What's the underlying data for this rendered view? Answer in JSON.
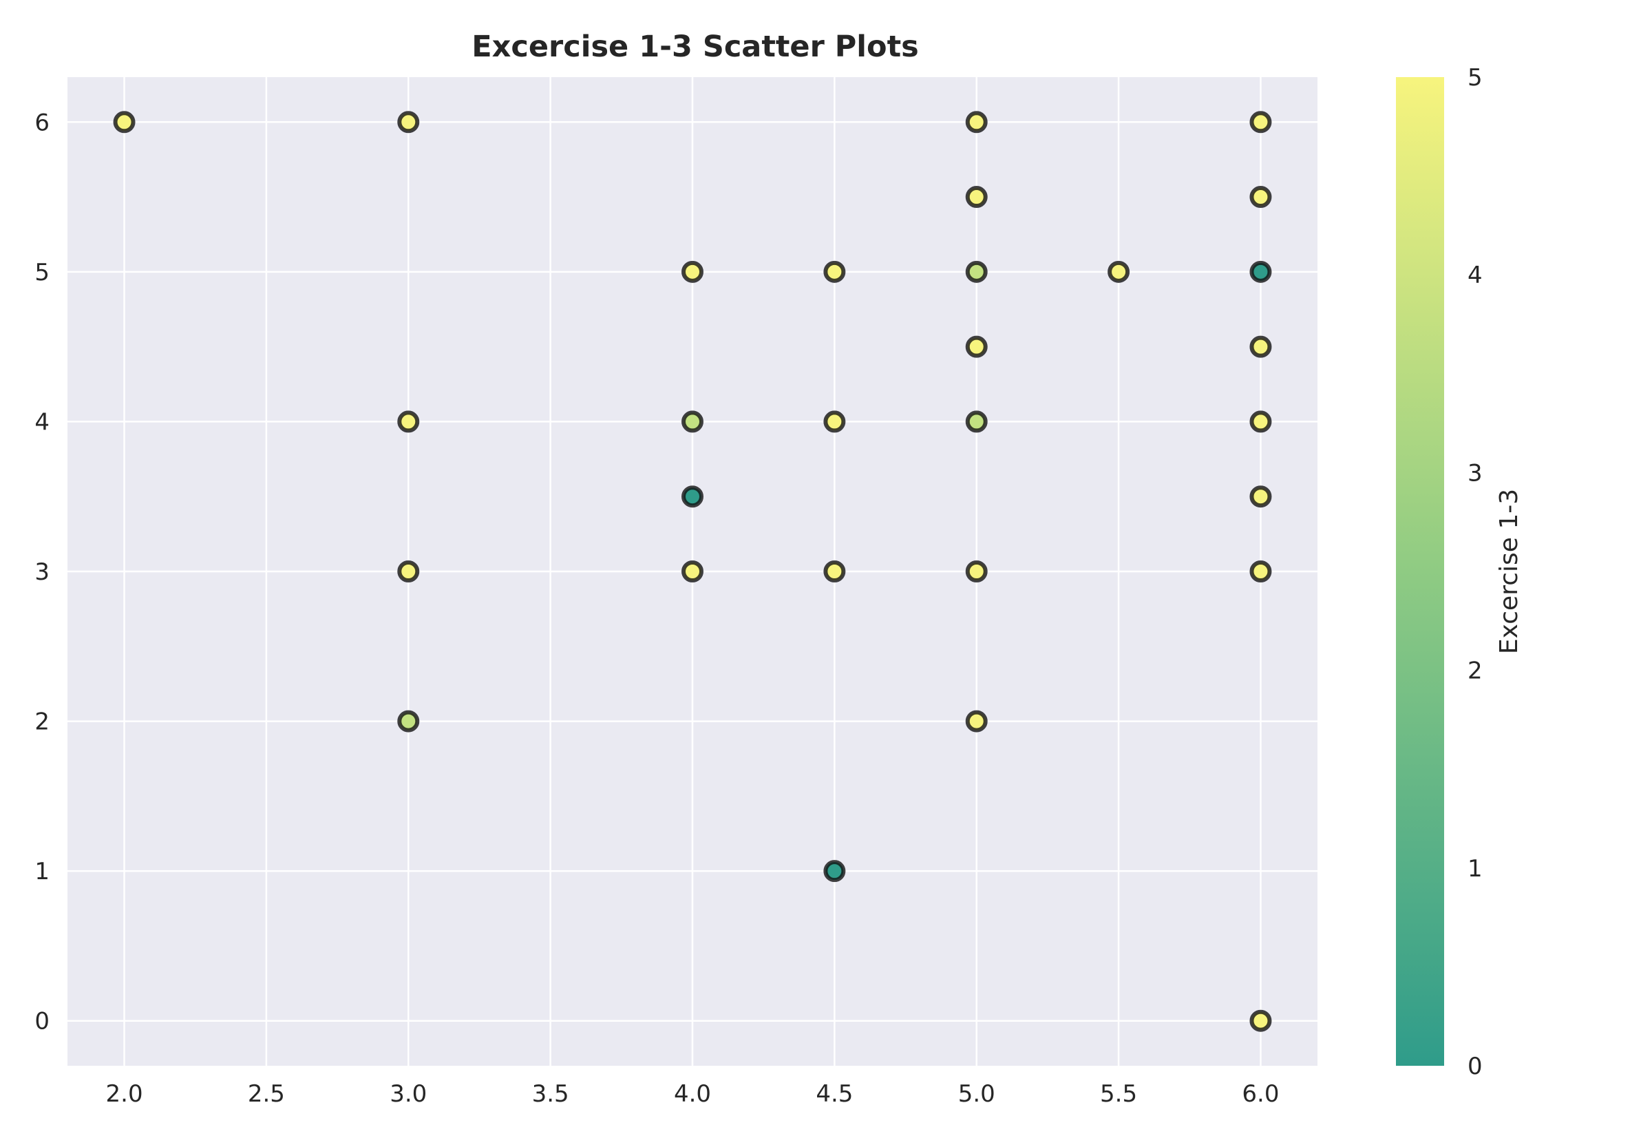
{
  "chart_data": {
    "type": "scatter",
    "title": "Excercise 1-3 Scatter Plots",
    "xlabel": "",
    "ylabel": "",
    "xlim": [
      1.8,
      6.2
    ],
    "ylim": [
      -0.3,
      6.3
    ],
    "xticks": [
      "2.0",
      "2.5",
      "3.0",
      "3.5",
      "4.0",
      "4.5",
      "5.0",
      "5.5",
      "6.0"
    ],
    "yticks": [
      "0",
      "1",
      "2",
      "3",
      "4",
      "5",
      "6"
    ],
    "grid": true,
    "colorbar": {
      "label": "Excercise 1-3",
      "range": [
        0,
        5
      ],
      "ticks": [
        "0",
        "1",
        "2",
        "3",
        "4",
        "5"
      ],
      "colormap": "viridis (alpha 0.8)"
    },
    "points": [
      {
        "x": 2.0,
        "y": 6,
        "c": 5
      },
      {
        "x": 3.0,
        "y": 6,
        "c": 5
      },
      {
        "x": 3.0,
        "y": 4,
        "c": 5
      },
      {
        "x": 3.0,
        "y": 3,
        "c": 5
      },
      {
        "x": 3.0,
        "y": 2,
        "c": 4
      },
      {
        "x": 4.0,
        "y": 5,
        "c": 5
      },
      {
        "x": 4.0,
        "y": 4,
        "c": 4
      },
      {
        "x": 4.0,
        "y": 3.5,
        "c": 0
      },
      {
        "x": 4.0,
        "y": 3,
        "c": 5
      },
      {
        "x": 4.5,
        "y": 5,
        "c": 5
      },
      {
        "x": 4.5,
        "y": 4,
        "c": 5
      },
      {
        "x": 4.5,
        "y": 3,
        "c": 5
      },
      {
        "x": 4.5,
        "y": 1,
        "c": 0
      },
      {
        "x": 5.0,
        "y": 6,
        "c": 5
      },
      {
        "x": 5.0,
        "y": 5.5,
        "c": 5
      },
      {
        "x": 5.0,
        "y": 5,
        "c": 4
      },
      {
        "x": 5.0,
        "y": 4.5,
        "c": 5
      },
      {
        "x": 5.0,
        "y": 4,
        "c": 4
      },
      {
        "x": 5.0,
        "y": 3,
        "c": 5
      },
      {
        "x": 5.0,
        "y": 2,
        "c": 5
      },
      {
        "x": 5.5,
        "y": 5,
        "c": 5
      },
      {
        "x": 6.0,
        "y": 6,
        "c": 5
      },
      {
        "x": 6.0,
        "y": 5.5,
        "c": 5
      },
      {
        "x": 6.0,
        "y": 5,
        "c": 0
      },
      {
        "x": 6.0,
        "y": 4.5,
        "c": 5
      },
      {
        "x": 6.0,
        "y": 4,
        "c": 5
      },
      {
        "x": 6.0,
        "y": 3.5,
        "c": 5
      },
      {
        "x": 6.0,
        "y": 3,
        "c": 5
      },
      {
        "x": 6.0,
        "y": 0,
        "c": 5
      }
    ]
  },
  "colors": {
    "plot_background": "#eaeaf2",
    "grid": "#ffffff",
    "marker_edge": "#111111",
    "text": "#262626"
  }
}
